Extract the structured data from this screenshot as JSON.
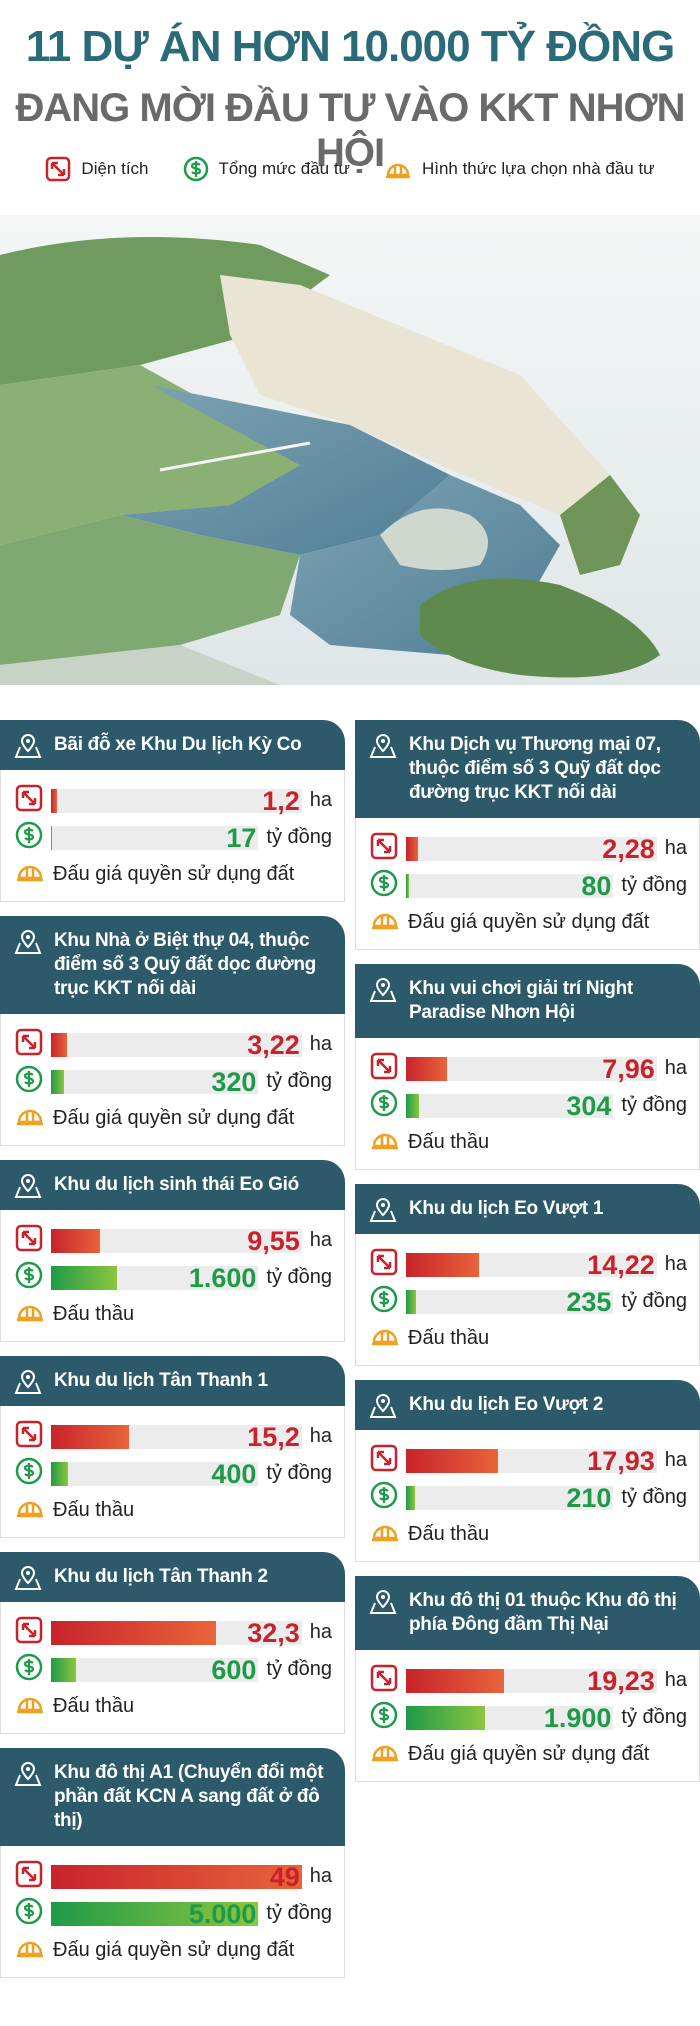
{
  "header": {
    "title": [
      "11 DỰ ÁN HƠN 10.000 TỶ ĐỒNG",
      "ĐANG MỜI ĐẦU TƯ VÀO KKT NHƠN HỘI"
    ]
  },
  "legend": [
    "Diện tích",
    "Tổng mức đầu tư",
    "Hình thức lựa chọn nhà đầu tư"
  ],
  "units": {
    "area": "ha",
    "investment": "tỷ đồng"
  },
  "scales": {
    "area_xlim": [
      0,
      49
    ],
    "investment_xlim": [
      0,
      5000
    ]
  },
  "left_column": [
    {
      "name": "Bãi đỗ xe Khu Du lịch Kỳ Co",
      "area": 1.2,
      "area_label": "1,2",
      "investment": 17,
      "method": "Đấu giá quyền sử dụng đất"
    },
    {
      "name": "Khu Nhà ở Biệt thự 04, thuộc điểm số 3 Quỹ đất dọc đường trục KKT nối dài",
      "area": 3.22,
      "area_label": "3,22",
      "investment": 320,
      "method": "Đấu giá quyền sử dụng đất"
    },
    {
      "name": "Khu du lịch sinh thái Eo Gió",
      "area": 9.55,
      "area_label": "9,55",
      "investment": 1600,
      "investment_label": "1.600",
      "method": "Đấu thầu"
    },
    {
      "name": "Khu du lịch Tân Thanh 1",
      "area": 15.2,
      "area_label": "15,2",
      "investment": 400,
      "method": "Đấu thầu"
    },
    {
      "name": "Khu du lịch Tân Thanh 2",
      "area": 32.3,
      "area_label": "32,3",
      "investment": 600,
      "method": "Đấu thầu"
    },
    {
      "name": "Khu đô thị A1 (Chuyển đổi một phần đất KCN A sang đất ở đô thị)",
      "area": 49,
      "investment": 5000,
      "investment_label": "5.000",
      "method": "Đấu giá quyền sử dụng đất"
    }
  ],
  "right_column": [
    {
      "name": "Khu Dịch vụ Thương mại 07, thuộc điểm số 3 Quỹ đất dọc đường trục KKT nối dài",
      "area": 2.28,
      "area_label": "2,28",
      "investment": 80,
      "method": "Đấu giá quyền sử dụng đất"
    },
    {
      "name": "Khu vui chơi giải trí Night Paradise Nhơn Hội",
      "area": 7.96,
      "area_label": "7,96",
      "investment": 304,
      "method": "Đấu thầu"
    },
    {
      "name": "Khu du lịch Eo Vượt 1",
      "area": 14.22,
      "area_label": "14,22",
      "investment": 235,
      "method": "Đấu thầu"
    },
    {
      "name": "Khu du lịch Eo Vượt 2",
      "area": 17.93,
      "area_label": "17,93",
      "investment": 210,
      "method": "Đấu thầu"
    },
    {
      "name": "Khu đô thị 01 thuộc Khu đô thị phía Đông đầm Thị Nại",
      "area": 19.23,
      "area_label": "19,23",
      "investment": 1900,
      "investment_label": "1.900",
      "method": "Đấu giá quyền sử dụng đất"
    }
  ]
}
